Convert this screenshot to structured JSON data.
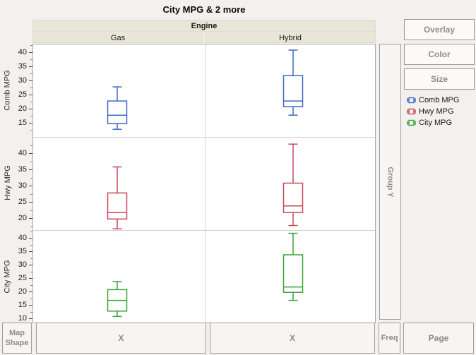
{
  "title": "City MPG & 2 more",
  "header": {
    "group_label": "Engine",
    "categories": [
      "Gas",
      "Hybrid"
    ]
  },
  "buttons": {
    "overlay": "Overlay",
    "color": "Color",
    "size": "Size"
  },
  "drop_zones": {
    "group_y": "Group Y",
    "map_shape_lines": [
      "Map",
      "Shape"
    ],
    "x_zones": [
      "X",
      "X"
    ],
    "freq": "Freq",
    "page": "Page"
  },
  "legend": {
    "items": [
      {
        "label": "Comb MPG",
        "color": "#3e68c6"
      },
      {
        "label": "Hwy MPG",
        "color": "#c9485a"
      },
      {
        "label": "City MPG",
        "color": "#39a439"
      }
    ]
  },
  "chart_data": {
    "type": "box",
    "title": "City MPG & 2 more",
    "facet_column_label": "Engine",
    "facet_columns": [
      "Gas",
      "Hybrid"
    ],
    "grid": false,
    "legend_position": "right",
    "rows": [
      {
        "label": "Comb MPG",
        "color": "#3e68c6",
        "ylim": [
          10.3,
          43.0
        ],
        "ticks": [
          15,
          20,
          25,
          30,
          35,
          40
        ],
        "boxes": [
          {
            "category": "Gas",
            "min": 13,
            "q1": 15,
            "median": 18,
            "q3": 23,
            "max": 28
          },
          {
            "category": "Hybrid",
            "min": 18,
            "q1": 21,
            "median": 23,
            "q3": 32,
            "max": 41
          }
        ]
      },
      {
        "label": "Hwy MPG",
        "color": "#c9485a",
        "ylim": [
          16.6,
          45.2
        ],
        "ticks": [
          20,
          25,
          30,
          35,
          40
        ],
        "boxes": [
          {
            "category": "Gas",
            "min": 17,
            "q1": 20,
            "median": 22,
            "q3": 28,
            "max": 36
          },
          {
            "category": "Hybrid",
            "min": 18,
            "q1": 22,
            "median": 24,
            "q3": 31,
            "max": 43
          }
        ]
      },
      {
        "label": "City MPG",
        "color": "#39a439",
        "ylim": [
          8.2,
          43.2
        ],
        "ticks": [
          10,
          15,
          20,
          25,
          30,
          35,
          40
        ],
        "boxes": [
          {
            "category": "Gas",
            "min": 11,
            "q1": 13,
            "median": 17,
            "q3": 21,
            "max": 24
          },
          {
            "category": "Hybrid",
            "min": 17,
            "q1": 20,
            "median": 22,
            "q3": 34,
            "max": 42
          }
        ]
      }
    ]
  }
}
